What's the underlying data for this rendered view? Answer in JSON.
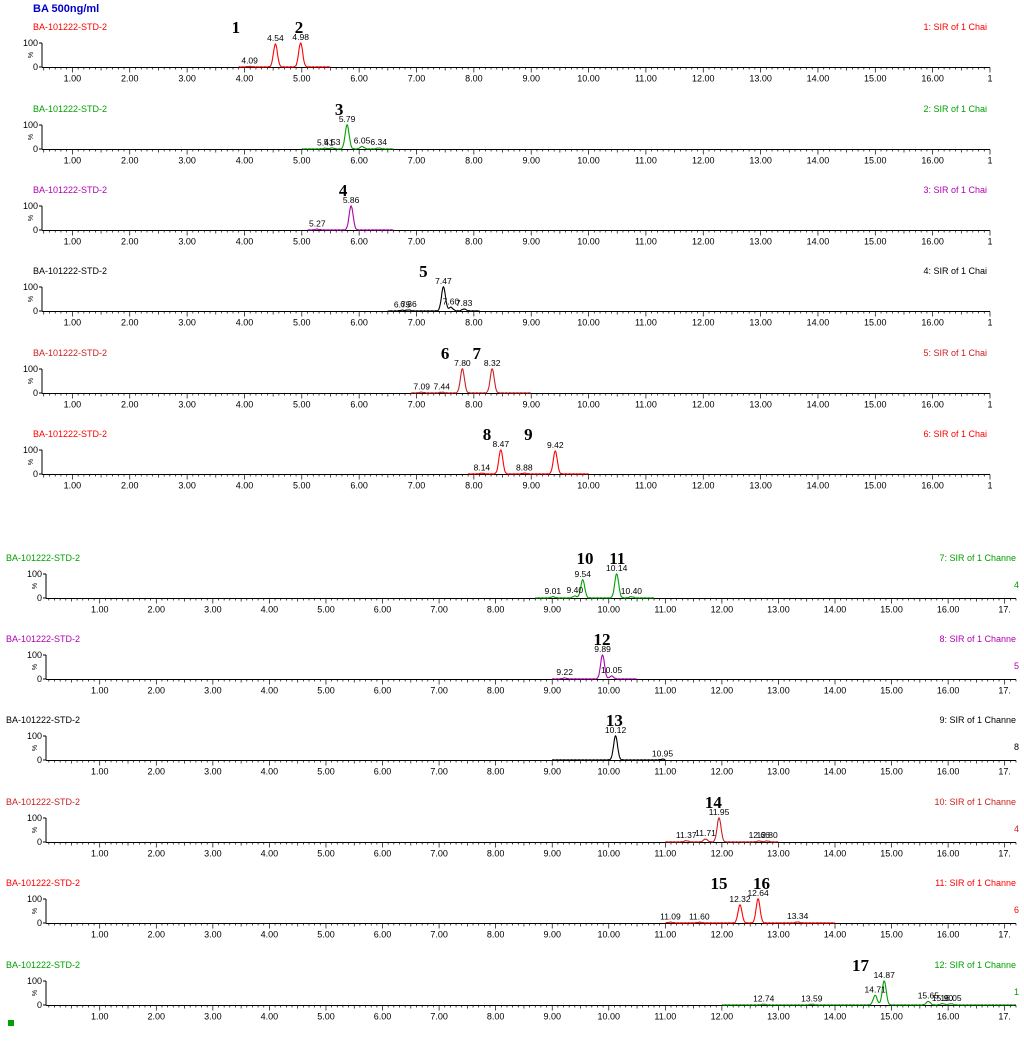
{
  "header": {
    "title": "BA 500ng/ml"
  },
  "status_marker_color": "#00a000",
  "colors": {
    "red": "#ff0000",
    "green": "#00a000",
    "purple": "#b000b0",
    "black": "#000000",
    "darkred": "#cc2020"
  },
  "chart_data": [
    {
      "type": "line",
      "sample": "BA-101222-STD-2",
      "trace_label": "1: SIR of 1 Chai",
      "color": "#ff0000",
      "xlim": [
        0.4,
        17.0
      ],
      "x_ticks": [
        "1.00",
        "2.00",
        "3.00",
        "4.00",
        "5.00",
        "6.00",
        "7.00",
        "8.00",
        "9.00",
        "10.00",
        "11.00",
        "12.00",
        "13.00",
        "14.00",
        "15.00",
        "16.00",
        "1"
      ],
      "y_ticks": [
        "100",
        "0"
      ],
      "y_unit": "%",
      "trace_range": [
        3.9,
        5.5
      ],
      "peaks": [
        {
          "x": 4.09,
          "y": 2
        },
        {
          "x": 4.54,
          "y": 95
        },
        {
          "x": 4.98,
          "y": 100
        }
      ],
      "peak_labels": [
        "4.09",
        "4.54",
        "4.98"
      ],
      "compound_numbers": [
        {
          "text": "1",
          "x": 3.85
        },
        {
          "text": "2",
          "x": 4.95
        }
      ]
    },
    {
      "type": "line",
      "sample": "BA-101222-STD-2",
      "trace_label": "2: SIR of 1 Chai",
      "color": "#00a000",
      "xlim": [
        0.4,
        17.0
      ],
      "x_ticks": [
        "1.00",
        "2.00",
        "3.00",
        "4.00",
        "5.00",
        "6.00",
        "7.00",
        "8.00",
        "9.00",
        "10.00",
        "11.00",
        "12.00",
        "13.00",
        "14.00",
        "15.00",
        "16.00",
        "1"
      ],
      "y_ticks": [
        "100",
        "0"
      ],
      "y_unit": "%",
      "trace_range": [
        5.0,
        6.6
      ],
      "peaks": [
        {
          "x": 5.41,
          "y": 3
        },
        {
          "x": 5.53,
          "y": 4
        },
        {
          "x": 5.79,
          "y": 100
        },
        {
          "x": 6.05,
          "y": 10
        },
        {
          "x": 6.34,
          "y": 4
        }
      ],
      "peak_labels": [
        "5.41",
        "5.53",
        "5.79",
        "6.05",
        "6.34"
      ],
      "compound_numbers": [
        {
          "text": "3",
          "x": 5.65
        }
      ]
    },
    {
      "type": "line",
      "sample": "BA-101222-STD-2",
      "trace_label": "3: SIR of 1 Chai",
      "color": "#b000b0",
      "xlim": [
        0.4,
        17.0
      ],
      "x_ticks": [
        "1.00",
        "2.00",
        "3.00",
        "4.00",
        "5.00",
        "6.00",
        "7.00",
        "8.00",
        "9.00",
        "10.00",
        "11.00",
        "12.00",
        "13.00",
        "14.00",
        "15.00",
        "16.00",
        "1"
      ],
      "y_ticks": [
        "100",
        "0"
      ],
      "y_unit": "%",
      "trace_range": [
        5.1,
        6.6
      ],
      "peaks": [
        {
          "x": 5.27,
          "y": 3
        },
        {
          "x": 5.86,
          "y": 100
        }
      ],
      "peak_labels": [
        "5.27",
        "5.86"
      ],
      "compound_numbers": [
        {
          "text": "4",
          "x": 5.72
        }
      ]
    },
    {
      "type": "line",
      "sample": "BA-101222-STD-2",
      "trace_label": "4: SIR of 1 Chai",
      "color": "#000000",
      "xlim": [
        0.4,
        17.0
      ],
      "x_ticks": [
        "1.00",
        "2.00",
        "3.00",
        "4.00",
        "5.00",
        "6.00",
        "7.00",
        "8.00",
        "9.00",
        "10.00",
        "11.00",
        "12.00",
        "13.00",
        "14.00",
        "15.00",
        "16.00",
        "1"
      ],
      "y_ticks": [
        "100",
        "0"
      ],
      "y_unit": "%",
      "trace_range": [
        6.5,
        8.1
      ],
      "peaks": [
        {
          "x": 6.75,
          "y": 3
        },
        {
          "x": 6.86,
          "y": 4
        },
        {
          "x": 7.47,
          "y": 100
        },
        {
          "x": 7.6,
          "y": 15
        },
        {
          "x": 7.83,
          "y": 8
        }
      ],
      "peak_labels": [
        "6.75",
        "6.86",
        "7.47",
        "7.60",
        "7.83"
      ],
      "compound_numbers": [
        {
          "text": "5",
          "x": 7.12
        }
      ]
    },
    {
      "type": "line",
      "sample": "BA-101222-STD-2",
      "trace_label": "5: SIR of 1 Chai",
      "color": "#cc2020",
      "xlim": [
        0.4,
        17.0
      ],
      "x_ticks": [
        "1.00",
        "2.00",
        "3.00",
        "4.00",
        "5.00",
        "6.00",
        "7.00",
        "8.00",
        "9.00",
        "10.00",
        "11.00",
        "12.00",
        "13.00",
        "14.00",
        "15.00",
        "16.00",
        "1"
      ],
      "y_ticks": [
        "100",
        "0"
      ],
      "y_unit": "%",
      "trace_range": [
        6.9,
        9.0
      ],
      "peaks": [
        {
          "x": 7.09,
          "y": 3
        },
        {
          "x": 7.44,
          "y": 3
        },
        {
          "x": 7.8,
          "y": 100
        },
        {
          "x": 8.32,
          "y": 100
        }
      ],
      "peak_labels": [
        "7.09",
        "7.44",
        "7.80",
        "8.32"
      ],
      "compound_numbers": [
        {
          "text": "6",
          "x": 7.5
        },
        {
          "text": "7",
          "x": 8.05
        }
      ]
    },
    {
      "type": "line",
      "sample": "BA-101222-STD-2",
      "trace_label": "6: SIR of 1 Chai",
      "color": "#ff0000",
      "xlim": [
        0.4,
        17.0
      ],
      "x_ticks": [
        "1.00",
        "2.00",
        "3.00",
        "4.00",
        "5.00",
        "6.00",
        "7.00",
        "8.00",
        "9.00",
        "10.00",
        "11.00",
        "12.00",
        "13.00",
        "14.00",
        "15.00",
        "16.00",
        "1"
      ],
      "y_ticks": [
        "100",
        "0"
      ],
      "y_unit": "%",
      "trace_range": [
        7.9,
        10.0
      ],
      "peaks": [
        {
          "x": 8.14,
          "y": 3
        },
        {
          "x": 8.47,
          "y": 100
        },
        {
          "x": 8.88,
          "y": 3
        },
        {
          "x": 9.42,
          "y": 95
        }
      ],
      "peak_labels": [
        "8.14",
        "8.47",
        "8.88",
        "9.42"
      ],
      "compound_numbers": [
        {
          "text": "8",
          "x": 8.23
        },
        {
          "text": "9",
          "x": 8.95
        }
      ]
    },
    {
      "type": "line",
      "sample": "BA-101222-STD-2",
      "trace_label": "7: SIR of 1 Channe",
      "right_edge_text": "4",
      "color": "#00a000",
      "xlim": [
        0.05,
        17.2
      ],
      "x_ticks": [
        "1.00",
        "2.00",
        "3.00",
        "4.00",
        "5.00",
        "6.00",
        "7.00",
        "8.00",
        "9.00",
        "10.00",
        "11.00",
        "12.00",
        "13.00",
        "14.00",
        "15.00",
        "16.00",
        "17."
      ],
      "y_ticks": [
        "100",
        "0"
      ],
      "y_unit": "%",
      "trace_range": [
        8.7,
        10.8
      ],
      "peaks": [
        {
          "x": 9.01,
          "y": 5
        },
        {
          "x": 9.4,
          "y": 8
        },
        {
          "x": 9.54,
          "y": 75
        },
        {
          "x": 10.14,
          "y": 100
        },
        {
          "x": 10.4,
          "y": 5
        }
      ],
      "peak_labels": [
        "9.01",
        "9.40",
        "9.54",
        "10.14",
        "10.40"
      ],
      "compound_numbers": [
        {
          "text": "10",
          "x": 9.58
        },
        {
          "text": "11",
          "x": 10.15
        }
      ]
    },
    {
      "type": "line",
      "sample": "BA-101222-STD-2",
      "trace_label": "8: SIR of 1 Channe",
      "right_edge_text": "5",
      "color": "#b000b0",
      "xlim": [
        0.05,
        17.2
      ],
      "x_ticks": [
        "1.00",
        "2.00",
        "3.00",
        "4.00",
        "5.00",
        "6.00",
        "7.00",
        "8.00",
        "9.00",
        "10.00",
        "11.00",
        "12.00",
        "13.00",
        "14.00",
        "15.00",
        "16.00",
        "17."
      ],
      "y_ticks": [
        "100",
        "0"
      ],
      "y_unit": "%",
      "trace_range": [
        9.0,
        10.5
      ],
      "peaks": [
        {
          "x": 9.22,
          "y": 4
        },
        {
          "x": 9.89,
          "y": 100
        },
        {
          "x": 10.05,
          "y": 12
        }
      ],
      "peak_labels": [
        "9.22",
        "9.89",
        "10.05"
      ],
      "compound_numbers": [
        {
          "text": "12",
          "x": 9.88
        }
      ]
    },
    {
      "type": "line",
      "sample": "BA-101222-STD-2",
      "trace_label": "9: SIR of 1 Channe",
      "right_edge_text": "8",
      "color": "#000000",
      "xlim": [
        0.05,
        17.2
      ],
      "x_ticks": [
        "1.00",
        "2.00",
        "3.00",
        "4.00",
        "5.00",
        "6.00",
        "7.00",
        "8.00",
        "9.00",
        "10.00",
        "11.00",
        "12.00",
        "13.00",
        "14.00",
        "15.00",
        "16.00",
        "17."
      ],
      "y_ticks": [
        "100",
        "0"
      ],
      "y_unit": "%",
      "trace_range": [
        9.0,
        11.0
      ],
      "peaks": [
        {
          "x": 10.12,
          "y": 100
        },
        {
          "x": 10.95,
          "y": 3
        }
      ],
      "peak_labels": [
        "10.12",
        "10.95"
      ],
      "compound_numbers": [
        {
          "text": "13",
          "x": 10.1
        }
      ]
    },
    {
      "type": "line",
      "sample": "BA-101222-STD-2",
      "trace_label": "10: SIR of 1 Channe",
      "right_edge_text": "4",
      "color": "#cc2020",
      "xlim": [
        0.05,
        17.2
      ],
      "x_ticks": [
        "1.00",
        "2.00",
        "3.00",
        "4.00",
        "5.00",
        "6.00",
        "7.00",
        "8.00",
        "9.00",
        "10.00",
        "11.00",
        "12.00",
        "13.00",
        "14.00",
        "15.00",
        "16.00",
        "17."
      ],
      "y_ticks": [
        "100",
        "0"
      ],
      "y_unit": "%",
      "trace_range": [
        11.0,
        13.0
      ],
      "peaks": [
        {
          "x": 11.37,
          "y": 5
        },
        {
          "x": 11.71,
          "y": 12
        },
        {
          "x": 11.95,
          "y": 100
        },
        {
          "x": 12.66,
          "y": 4
        },
        {
          "x": 12.8,
          "y": 4
        }
      ],
      "peak_labels": [
        "11.37",
        "11.71",
        "11.95",
        "12.66",
        "12.80"
      ],
      "compound_numbers": [
        {
          "text": "14",
          "x": 11.85
        }
      ]
    },
    {
      "type": "line",
      "sample": "BA-101222-STD-2",
      "trace_label": "11: SIR of 1 Channe",
      "right_edge_text": "6",
      "color": "#ff0000",
      "xlim": [
        0.05,
        17.2
      ],
      "x_ticks": [
        "1.00",
        "2.00",
        "3.00",
        "4.00",
        "5.00",
        "6.00",
        "7.00",
        "8.00",
        "9.00",
        "10.00",
        "11.00",
        "12.00",
        "13.00",
        "14.00",
        "15.00",
        "16.00",
        "17."
      ],
      "y_ticks": [
        "100",
        "0"
      ],
      "y_unit": "%",
      "trace_range": [
        11.0,
        14.0
      ],
      "peaks": [
        {
          "x": 11.09,
          "y": 3
        },
        {
          "x": 11.6,
          "y": 3
        },
        {
          "x": 12.32,
          "y": 75
        },
        {
          "x": 12.64,
          "y": 100
        },
        {
          "x": 13.34,
          "y": 4
        }
      ],
      "peak_labels": [
        "11.09",
        "11.60",
        "12.32",
        "12.64",
        "13.34"
      ],
      "compound_numbers": [
        {
          "text": "15",
          "x": 11.95
        },
        {
          "text": "16",
          "x": 12.7
        }
      ]
    },
    {
      "type": "line",
      "sample": "BA-101222-STD-2",
      "trace_label": "12: SIR of 1 Channe",
      "right_edge_text": "1",
      "color": "#00a000",
      "xlim": [
        0.05,
        17.2
      ],
      "x_ticks": [
        "1.00",
        "2.00",
        "3.00",
        "4.00",
        "5.00",
        "6.00",
        "7.00",
        "8.00",
        "9.00",
        "10.00",
        "11.00",
        "12.00",
        "13.00",
        "14.00",
        "15.00",
        "16.00",
        "17."
      ],
      "y_ticks": [
        "100",
        "0"
      ],
      "y_unit": "%",
      "trace_range": [
        12.0,
        17.2
      ],
      "peaks": [
        {
          "x": 12.74,
          "y": 3
        },
        {
          "x": 13.59,
          "y": 3
        },
        {
          "x": 14.71,
          "y": 40
        },
        {
          "x": 14.87,
          "y": 100
        },
        {
          "x": 15.65,
          "y": 15
        },
        {
          "x": 15.9,
          "y": 5
        },
        {
          "x": 16.05,
          "y": 5
        }
      ],
      "peak_labels": [
        "12.74",
        "13.59",
        "14.71",
        "14.87",
        "15.65",
        "15.90",
        "16.05"
      ],
      "compound_numbers": [
        {
          "text": "17",
          "x": 14.45
        }
      ]
    }
  ]
}
